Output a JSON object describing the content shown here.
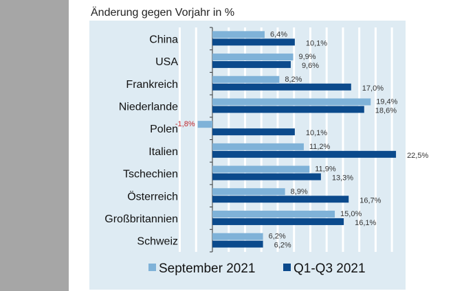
{
  "chart_data": {
    "type": "bar",
    "orientation": "horizontal",
    "title": "Änderung gegen Vorjahr in %",
    "categories": [
      "China",
      "USA",
      "Frankreich",
      "Niederlande",
      "Polen",
      "Italien",
      "Tschechien",
      "Österreich",
      "Großbritannien",
      "Schweiz"
    ],
    "series": [
      {
        "name": "September 2021",
        "color": "#7fb2d8",
        "values": [
          6.4,
          9.9,
          8.2,
          19.4,
          -1.8,
          11.2,
          11.9,
          8.9,
          15.0,
          6.2
        ],
        "labels": [
          "6,4%",
          "9,9%",
          "8,2%",
          "19,4%",
          "-1,8%",
          "11,2%",
          "11,9%",
          "8,9%",
          "15,0%",
          "6,2%"
        ]
      },
      {
        "name": "Q1-Q3 2021",
        "color": "#0b4a8c",
        "values": [
          10.1,
          9.6,
          17.0,
          18.6,
          10.1,
          22.5,
          13.3,
          16.7,
          16.1,
          6.2
        ],
        "labels": [
          "10,1%",
          "9,6%",
          "17,0%",
          "18,6%",
          "10,1%",
          "22,5%",
          "13,3%",
          "16,7%",
          "16,1%",
          "6,2%"
        ]
      }
    ],
    "xlim": [
      -4.4,
      22.8
    ],
    "grid": true,
    "legend": "bottom",
    "negative_label_color": "#c0272d",
    "background": "#deebf3"
  }
}
